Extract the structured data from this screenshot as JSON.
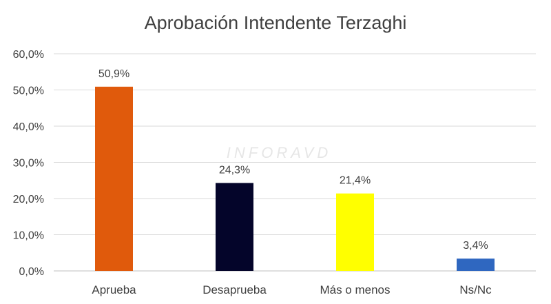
{
  "chart_data": {
    "type": "bar",
    "title": "Aprobación Intendente Terzaghi",
    "categories": [
      "Aprueba",
      "Desaprueba",
      "Más o menos",
      "Ns/Nc"
    ],
    "values": [
      50.9,
      24.3,
      21.4,
      3.4
    ],
    "data_labels": [
      "50,9%",
      "24,3%",
      "21,4%",
      "3,4%"
    ],
    "bar_colors": [
      "#e05a0c",
      "#04052a",
      "#ffff00",
      "#2f67c0"
    ],
    "ylim": [
      0,
      60
    ],
    "yticks": [
      0,
      10,
      20,
      30,
      40,
      50,
      60
    ],
    "ytick_labels": [
      "0,0%",
      "10,0%",
      "20,0%",
      "30,0%",
      "40,0%",
      "50,0%",
      "60,0%"
    ],
    "xlabel": "",
    "ylabel": "",
    "grid": true,
    "legend": false
  },
  "watermark": "INFORAVD"
}
